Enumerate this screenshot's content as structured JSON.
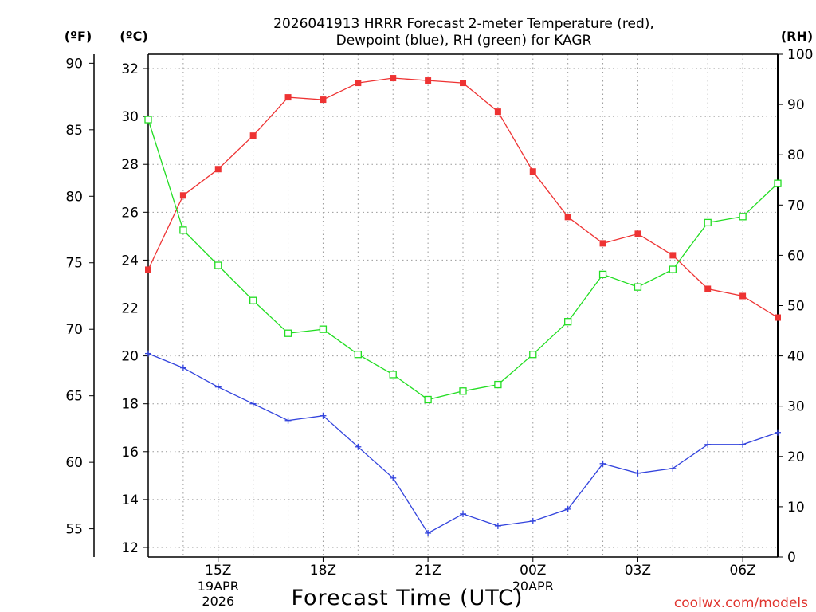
{
  "chart_data": {
    "type": "line",
    "title_line1": "2026041913 HRRR Forecast 2-meter Temperature (red),",
    "title_line2": "Dewpoint (blue), RH (green) for KAGR",
    "xlabel": "Forecast Time (UTC)",
    "unit_f": "(ºF)",
    "unit_c": "(ºC)",
    "unit_rh": "(RH)",
    "watermark": "coolwx.com/models",
    "ylim_c": [
      11.6,
      32.6
    ],
    "ylim_f": [
      52.88,
      90.68
    ],
    "ylim_rh": [
      0,
      100
    ],
    "c_ticks": [
      "32",
      "30",
      "28",
      "26",
      "24",
      "22",
      "20",
      "18",
      "16",
      "14",
      "12"
    ],
    "f_ticks": [
      "90",
      "85",
      "80",
      "75",
      "70",
      "65",
      "60",
      "55"
    ],
    "rh_ticks": [
      "100",
      "90",
      "80",
      "70",
      "60",
      "50",
      "40",
      "30",
      "20",
      "10",
      "0"
    ],
    "x_hours": [
      13,
      14,
      15,
      16,
      17,
      18,
      19,
      20,
      21,
      22,
      23,
      24,
      25,
      26,
      27,
      28,
      29,
      30,
      31
    ],
    "x_ticks": [
      {
        "hour": 15,
        "label": "15Z",
        "sub1": "19APR",
        "sub2": "2026"
      },
      {
        "hour": 18,
        "label": "18Z",
        "sub1": "",
        "sub2": ""
      },
      {
        "hour": 21,
        "label": "21Z",
        "sub1": "",
        "sub2": ""
      },
      {
        "hour": 24,
        "label": "00Z",
        "sub1": "20APR",
        "sub2": ""
      },
      {
        "hour": 27,
        "label": "03Z",
        "sub1": "",
        "sub2": ""
      },
      {
        "hour": 30,
        "label": "06Z",
        "sub1": "",
        "sub2": ""
      }
    ],
    "series": [
      {
        "name": "Temperature",
        "axis": "c",
        "color": "#ee3333",
        "marker": "filled-square",
        "values": [
          23.6,
          26.7,
          27.8,
          29.2,
          30.8,
          30.7,
          31.4,
          31.6,
          31.5,
          31.4,
          30.2,
          27.7,
          25.8,
          24.7,
          25.1,
          24.2,
          22.8,
          22.5,
          21.6
        ]
      },
      {
        "name": "Dewpoint",
        "axis": "c",
        "color": "#3344dd",
        "marker": "plus",
        "values": [
          20.1,
          19.5,
          18.7,
          18.0,
          17.3,
          17.5,
          16.2,
          14.9,
          12.6,
          13.4,
          12.9,
          13.1,
          13.6,
          15.5,
          15.1,
          15.3,
          16.3,
          16.3,
          16.8
        ]
      },
      {
        "name": "RH",
        "axis": "rh",
        "color": "#22dd22",
        "marker": "open-square",
        "values": [
          87,
          65,
          58,
          51,
          44.5,
          45.3,
          40.3,
          36.3,
          31.3,
          33,
          34.3,
          40.3,
          46.8,
          56.2,
          53.7,
          57.2,
          66.5,
          67.7,
          74.3
        ]
      }
    ]
  }
}
